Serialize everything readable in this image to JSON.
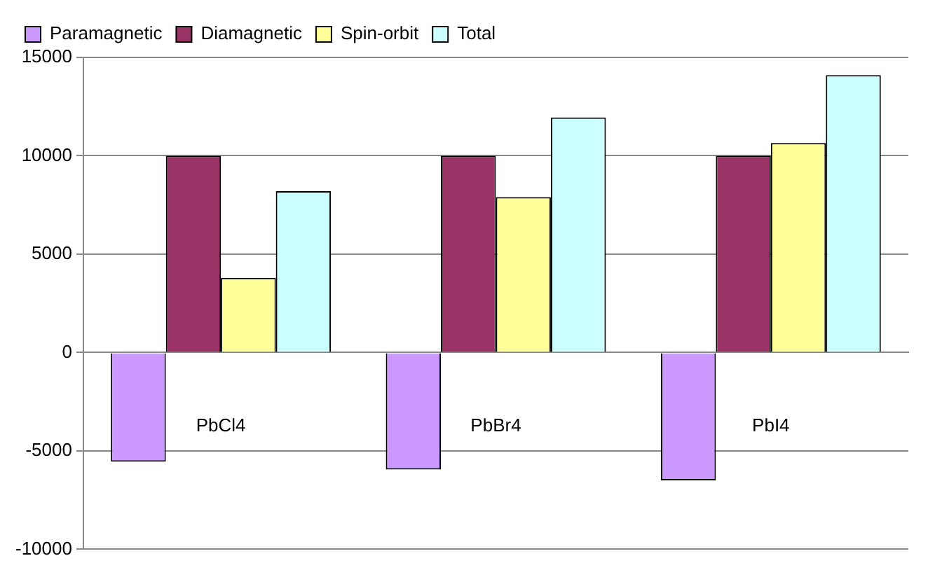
{
  "chart_data": {
    "type": "bar",
    "categories": [
      "PbCl4",
      "PbBr4",
      "PbI4"
    ],
    "series": [
      {
        "name": "Paramagnetic",
        "color": "#cc99ff",
        "values": [
          -5550,
          -5950,
          -6500
        ]
      },
      {
        "name": "Diamagnetic",
        "color": "#993366",
        "values": [
          10000,
          10000,
          10000
        ]
      },
      {
        "name": "Spin-orbit",
        "color": "#ffff99",
        "values": [
          3800,
          7900,
          10650
        ]
      },
      {
        "name": "Total",
        "color": "#ccffff",
        "values": [
          8200,
          11950,
          14100
        ]
      }
    ],
    "ylim": [
      -10000,
      15000
    ],
    "yticks": [
      -10000,
      -5000,
      0,
      5000,
      10000,
      15000
    ],
    "grid": "y",
    "legend": "top left"
  }
}
